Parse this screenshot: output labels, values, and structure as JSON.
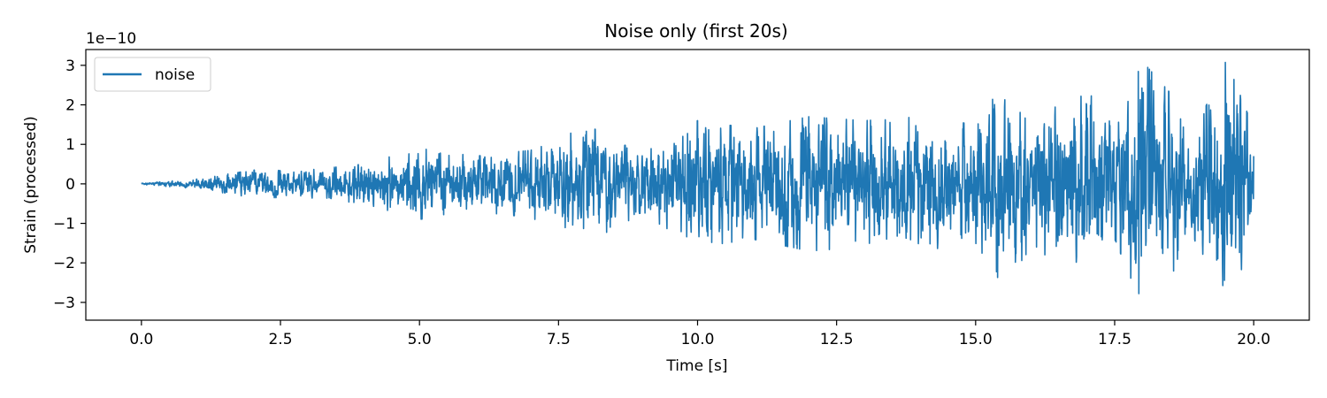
{
  "chart_data": {
    "type": "line",
    "title": "Noise only (first 20s)",
    "xlabel": "Time [s]",
    "ylabel": "Strain (processed)",
    "y_offset_text": "1e−10",
    "y_scale": 1e-10,
    "xlim": [
      -1.0,
      21.0
    ],
    "ylim": [
      -3.45e-10,
      3.4e-10
    ],
    "x_ticks": [
      0.0,
      2.5,
      5.0,
      7.5,
      10.0,
      12.5,
      15.0,
      17.5,
      20.0
    ],
    "x_tick_labels": [
      "0.0",
      "2.5",
      "5.0",
      "7.5",
      "10.0",
      "12.5",
      "15.0",
      "17.5",
      "20.0"
    ],
    "y_ticks": [
      -3e-10,
      -2e-10,
      -1e-10,
      0,
      1e-10,
      2e-10,
      3e-10
    ],
    "y_tick_labels": [
      "−3",
      "−2",
      "−1",
      "0",
      "1",
      "2",
      "3"
    ],
    "grid": false,
    "legend_position": "top-left",
    "series": [
      {
        "name": "noise",
        "color": "#1f77b4",
        "x_range": [
          0.0,
          20.0
        ],
        "envelope": {
          "t": [
            0.0,
            1.0,
            2.0,
            3.0,
            4.0,
            5.0,
            6.0,
            7.0,
            8.0,
            9.0,
            10.0,
            11.0,
            12.0,
            13.0,
            14.0,
            15.0,
            15.5,
            16.0,
            17.0,
            17.5,
            18.0,
            19.0,
            19.5,
            20.0
          ],
          "amplitude": [
            2e-12,
            1.2e-11,
            3.5e-11,
            3.5e-11,
            5e-11,
            9e-11,
            7e-11,
            8.5e-11,
            1.5e-10,
            7.5e-11,
            1.6e-10,
            1.4e-10,
            1.7e-10,
            1.6e-10,
            1.7e-10,
            1.5e-10,
            2.6e-10,
            1.6e-10,
            2.4e-10,
            1.4e-10,
            3.1e-10,
            1.5e-10,
            3.15e-10,
            1.4e-10
          ]
        }
      }
    ]
  }
}
